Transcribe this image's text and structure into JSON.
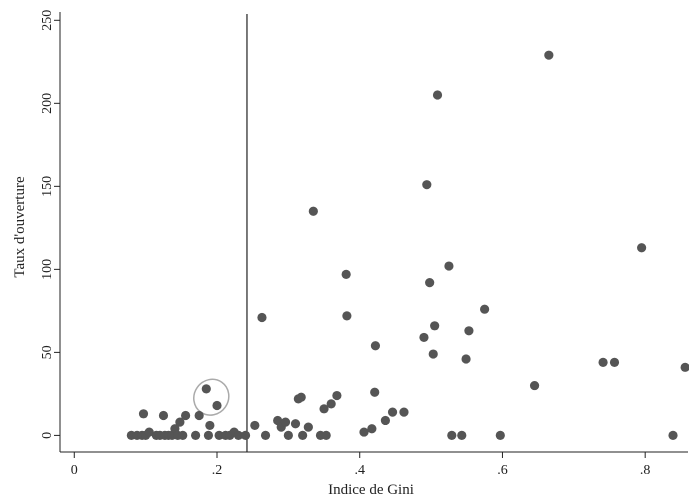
{
  "chart_data": {
    "type": "scatter",
    "xlabel": "Indice de Gini",
    "ylabel": "Taux d'ouverture",
    "xlim": [
      -0.02,
      0.86
    ],
    "ylim": [
      -10,
      255
    ],
    "x_ticks": [
      {
        "value": 0,
        "label": "0"
      },
      {
        "value": 0.2,
        "label": ".2"
      },
      {
        "value": 0.4,
        "label": ".4"
      },
      {
        "value": 0.6,
        "label": ".6"
      },
      {
        "value": 0.8,
        "label": ".8"
      }
    ],
    "y_ticks": [
      {
        "value": 0,
        "label": "0"
      },
      {
        "value": 50,
        "label": "50"
      },
      {
        "value": 100,
        "label": "100"
      },
      {
        "value": 150,
        "label": "150"
      },
      {
        "value": 200,
        "label": "200"
      },
      {
        "value": 250,
        "label": "250"
      }
    ],
    "grid": false,
    "vertical_line_x": 0.242,
    "highlight_ellipse": {
      "x": 0.192,
      "y": 23,
      "rx": 0.024,
      "ry": 11
    },
    "marker_color": "#555555",
    "points": [
      {
        "x": 0.08,
        "y": 0
      },
      {
        "x": 0.088,
        "y": 0
      },
      {
        "x": 0.095,
        "y": 0
      },
      {
        "x": 0.097,
        "y": 13
      },
      {
        "x": 0.1,
        "y": 0
      },
      {
        "x": 0.105,
        "y": 2
      },
      {
        "x": 0.115,
        "y": 0
      },
      {
        "x": 0.12,
        "y": 0
      },
      {
        "x": 0.125,
        "y": 12
      },
      {
        "x": 0.127,
        "y": 0
      },
      {
        "x": 0.132,
        "y": 0
      },
      {
        "x": 0.137,
        "y": 0
      },
      {
        "x": 0.141,
        "y": 4
      },
      {
        "x": 0.145,
        "y": 0
      },
      {
        "x": 0.148,
        "y": 8
      },
      {
        "x": 0.152,
        "y": 0
      },
      {
        "x": 0.156,
        "y": 12
      },
      {
        "x": 0.17,
        "y": 0
      },
      {
        "x": 0.175,
        "y": 12
      },
      {
        "x": 0.185,
        "y": 28
      },
      {
        "x": 0.188,
        "y": 0
      },
      {
        "x": 0.19,
        "y": 6
      },
      {
        "x": 0.2,
        "y": 18
      },
      {
        "x": 0.203,
        "y": 0
      },
      {
        "x": 0.212,
        "y": 0
      },
      {
        "x": 0.218,
        "y": 0
      },
      {
        "x": 0.224,
        "y": 2
      },
      {
        "x": 0.23,
        "y": 0
      },
      {
        "x": 0.24,
        "y": 0
      },
      {
        "x": 0.253,
        "y": 6
      },
      {
        "x": 0.263,
        "y": 71
      },
      {
        "x": 0.268,
        "y": 0
      },
      {
        "x": 0.285,
        "y": 9
      },
      {
        "x": 0.29,
        "y": 5
      },
      {
        "x": 0.296,
        "y": 8
      },
      {
        "x": 0.3,
        "y": 0
      },
      {
        "x": 0.31,
        "y": 7
      },
      {
        "x": 0.314,
        "y": 22
      },
      {
        "x": 0.318,
        "y": 23
      },
      {
        "x": 0.32,
        "y": 0
      },
      {
        "x": 0.328,
        "y": 5
      },
      {
        "x": 0.335,
        "y": 135
      },
      {
        "x": 0.345,
        "y": 0
      },
      {
        "x": 0.35,
        "y": 16
      },
      {
        "x": 0.353,
        "y": 0
      },
      {
        "x": 0.36,
        "y": 19
      },
      {
        "x": 0.368,
        "y": 24
      },
      {
        "x": 0.381,
        "y": 97
      },
      {
        "x": 0.382,
        "y": 72
      },
      {
        "x": 0.406,
        "y": 2
      },
      {
        "x": 0.417,
        "y": 4
      },
      {
        "x": 0.421,
        "y": 26
      },
      {
        "x": 0.422,
        "y": 54
      },
      {
        "x": 0.436,
        "y": 9
      },
      {
        "x": 0.446,
        "y": 14
      },
      {
        "x": 0.462,
        "y": 14
      },
      {
        "x": 0.49,
        "y": 59
      },
      {
        "x": 0.494,
        "y": 151
      },
      {
        "x": 0.498,
        "y": 92
      },
      {
        "x": 0.503,
        "y": 49
      },
      {
        "x": 0.505,
        "y": 66
      },
      {
        "x": 0.509,
        "y": 205
      },
      {
        "x": 0.525,
        "y": 102
      },
      {
        "x": 0.529,
        "y": 0
      },
      {
        "x": 0.543,
        "y": 0
      },
      {
        "x": 0.549,
        "y": 46
      },
      {
        "x": 0.553,
        "y": 63
      },
      {
        "x": 0.575,
        "y": 76
      },
      {
        "x": 0.597,
        "y": 0
      },
      {
        "x": 0.645,
        "y": 30
      },
      {
        "x": 0.665,
        "y": 229
      },
      {
        "x": 0.741,
        "y": 44
      },
      {
        "x": 0.757,
        "y": 44
      },
      {
        "x": 0.795,
        "y": 113
      },
      {
        "x": 0.839,
        "y": 0
      },
      {
        "x": 0.856,
        "y": 41
      }
    ]
  }
}
